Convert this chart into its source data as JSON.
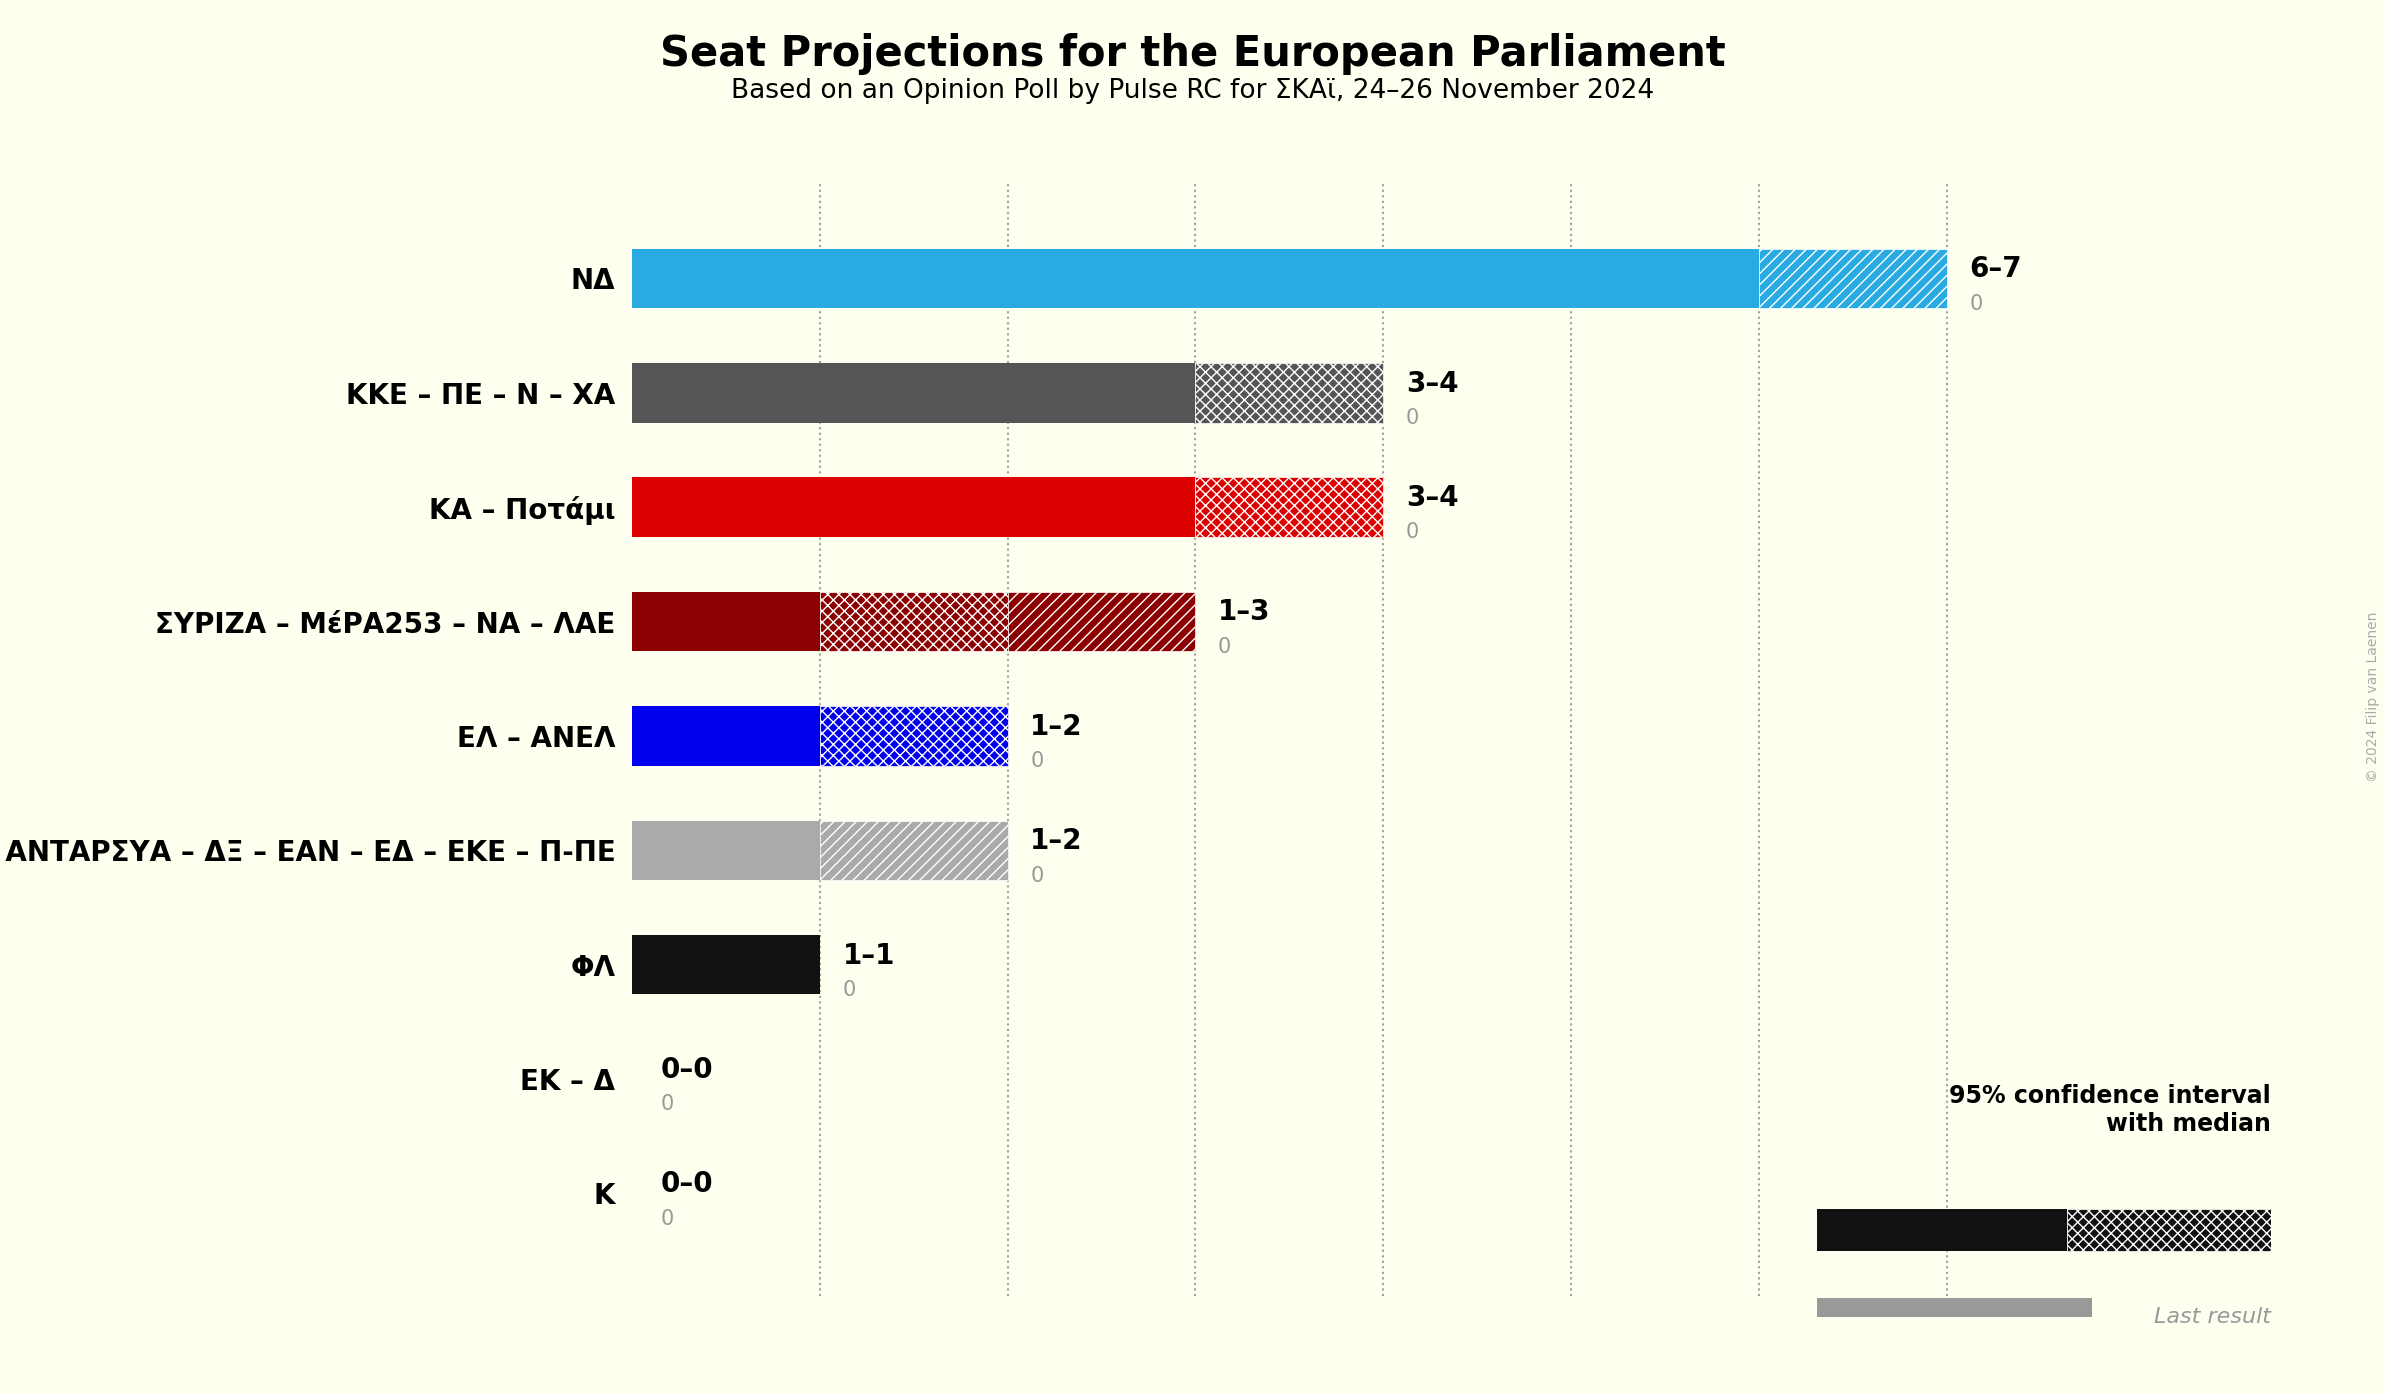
{
  "title": "Seat Projections for the European Parliament",
  "subtitle": "Based on an Opinion Poll by Pulse RC for ΣΚΑϊ, 24–26 November 2024",
  "copyright": "© 2024 Filip van Laenen",
  "background_color": "#fffff0",
  "parties": [
    {
      "label": "ΝΔ",
      "low": 6,
      "high": 7,
      "last": 0,
      "color": "#29abe2",
      "range_label": "6–7",
      "hatch_style": "///"
    },
    {
      "label": "ΚΚΕ – ΠΕ – Ν – ΧΑ",
      "low": 3,
      "high": 4,
      "last": 0,
      "color": "#555555",
      "range_label": "3–4",
      "hatch_style": "xxx"
    },
    {
      "label": "ΚΑ – Ποτάμι",
      "low": 3,
      "high": 4,
      "last": 0,
      "color": "#dd0000",
      "range_label": "3–4",
      "hatch_style": "xxx"
    },
    {
      "label": "ΣΥΡΙΖΑ – ΜέΡΑ253 – ΝΑ – ΛΑΕ",
      "low": 1,
      "high": 3,
      "last": 0,
      "color": "#8b0000",
      "range_label": "1–3",
      "hatch_style": "mixed"
    },
    {
      "label": "ΕΛ – ΑΝΕΛ",
      "low": 1,
      "high": 2,
      "last": 0,
      "color": "#0000ee",
      "range_label": "1–2",
      "hatch_style": "xxx"
    },
    {
      "label": "ΚΙΔΗ – Σπαρ – ΑΝΤΑΡΣΥΑ – ΔΞ – ΕΑΝ – ΕΔ – ΕΚΕ – Π-ΠΕ",
      "low": 1,
      "high": 2,
      "last": 0,
      "color": "#aaaaaa",
      "range_label": "1–2",
      "hatch_style": "///"
    },
    {
      "label": "ΦΛ",
      "low": 1,
      "high": 1,
      "last": 0,
      "color": "#111111",
      "range_label": "1–1",
      "hatch_style": null
    },
    {
      "label": "ΕΚ – Δ",
      "low": 0,
      "high": 0,
      "last": 0,
      "color": "#cccccc",
      "range_label": "0–0",
      "hatch_style": null
    },
    {
      "label": "Κ",
      "low": 0,
      "high": 0,
      "last": 0,
      "color": "#cccccc",
      "range_label": "0–0",
      "hatch_style": null
    }
  ],
  "xmax": 8.0,
  "xlim_left": 0,
  "bar_height": 0.52,
  "dotted_lines": [
    1,
    2,
    3,
    4,
    5,
    6,
    7
  ],
  "label_fontsize": 20,
  "range_fontsize": 20,
  "last_fontsize": 15,
  "title_fontsize": 30,
  "subtitle_fontsize": 19
}
